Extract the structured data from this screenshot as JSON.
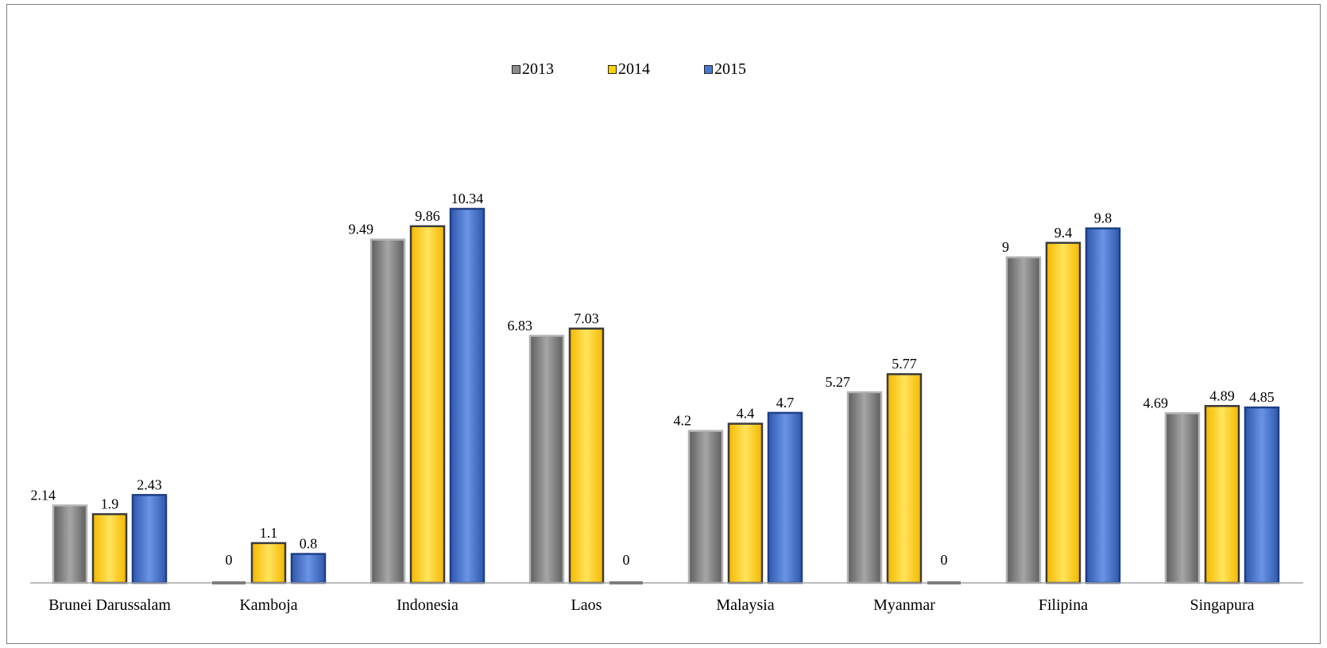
{
  "chart_data": {
    "type": "bar",
    "title": "",
    "xlabel": "",
    "ylabel": "",
    "ylim": [
      0,
      10.34
    ],
    "grid": false,
    "legend_position": "top",
    "categories": [
      "Brunei Darussalam",
      "Kamboja",
      "Indonesia",
      "Laos",
      "Malaysia",
      "Myanmar",
      "Filipina",
      "Singapura"
    ],
    "series": [
      {
        "name": "2013",
        "color": "#7f7f7f",
        "values": [
          2.14,
          0,
          9.49,
          6.83,
          4.2,
          5.27,
          9,
          4.69
        ],
        "labels": [
          "2.14",
          "0",
          "9.49",
          "6.83",
          "4.2",
          "5.27",
          "9",
          "4.69"
        ]
      },
      {
        "name": "2014",
        "color": "#ffc000",
        "values": [
          1.9,
          1.1,
          9.86,
          7.03,
          4.4,
          5.77,
          9.4,
          4.89
        ],
        "labels": [
          "1.9",
          "1.1",
          "9.86",
          "7.03",
          "4.4",
          "5.77",
          "9.4",
          "4.89"
        ]
      },
      {
        "name": "2015",
        "color": "#4472c4",
        "values": [
          2.43,
          0.8,
          10.34,
          0,
          4.7,
          0,
          9.8,
          4.85
        ],
        "labels": [
          "2.43",
          "0.8",
          "10.34",
          "0",
          "4.7",
          "0",
          "9.8",
          "4.85"
        ]
      }
    ]
  }
}
